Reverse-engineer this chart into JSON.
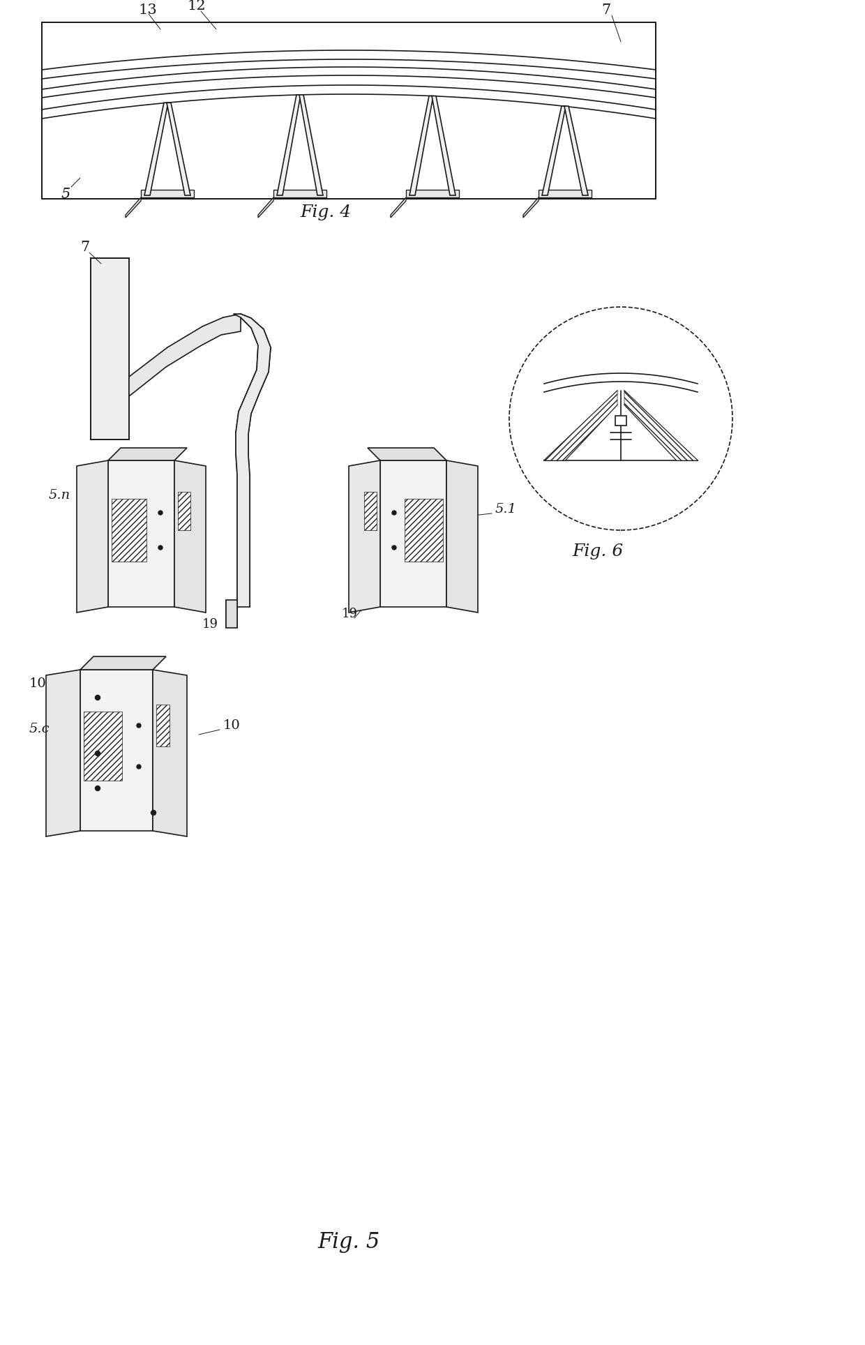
{
  "bg_color": "#ffffff",
  "line_color": "#1a1a1a",
  "lw": 1.2,
  "tlw": 0.7,
  "fig_width": 12.4,
  "fig_height": 19.28,
  "fig4_label": "Fig. 4",
  "fig5_label": "Fig. 5",
  "fig6_label": "Fig. 6",
  "label_13": "13",
  "label_12": "12",
  "label_7": "7",
  "label_5": "5",
  "label_5n": "5.n",
  "label_51": "5.1",
  "label_5c": "5.c",
  "label_19": "19",
  "label_10": "10"
}
